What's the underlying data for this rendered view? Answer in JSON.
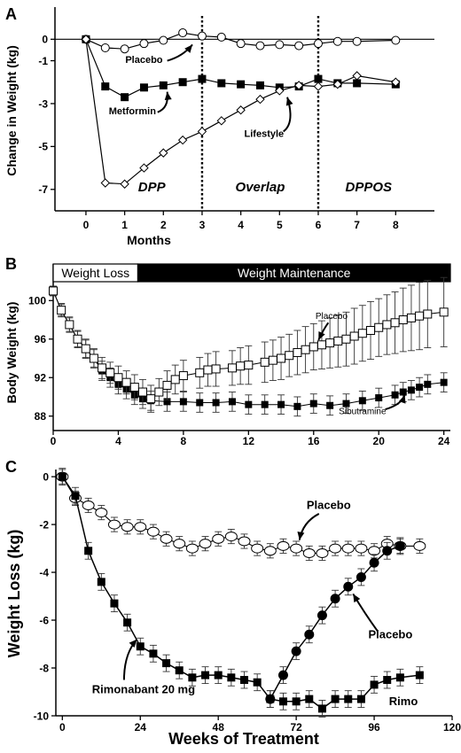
{
  "chart_data": [
    {
      "type": "line",
      "panel_letter": "A",
      "xlabel": "Months",
      "ylabel": "Change in Weight (kg)",
      "xlim": [
        -0.8,
        9
      ],
      "ylim": [
        -8,
        1.5
      ],
      "x_ticks": [
        0,
        1,
        2,
        3,
        4,
        5,
        6,
        7,
        8
      ],
      "y_ticks": [
        0,
        -1,
        -3,
        -5,
        -7
      ],
      "grid": false,
      "phases": [
        {
          "label": "DPP",
          "x": 1.7
        },
        {
          "label": "Overlap",
          "x": 4.5
        },
        {
          "label": "DPPOS",
          "x": 7.3
        }
      ],
      "dividers": [
        3,
        6
      ],
      "zero_line": true,
      "series": [
        {
          "name": "Placebo",
          "marker": "circle-open",
          "points": [
            [
              0,
              0
            ],
            [
              0.5,
              -0.4
            ],
            [
              1,
              -0.45
            ],
            [
              1.5,
              -0.2
            ],
            [
              2,
              -0.05
            ],
            [
              2.5,
              0.3
            ],
            [
              3,
              0.15
            ],
            [
              3.5,
              0.1
            ],
            [
              4,
              -0.2
            ],
            [
              4.5,
              -0.3
            ],
            [
              5,
              -0.25
            ],
            [
              5.5,
              -0.3
            ],
            [
              6,
              -0.2
            ],
            [
              6.5,
              -0.1
            ],
            [
              7,
              -0.1
            ],
            [
              8,
              -0.05
            ]
          ],
          "label_at": [
            1.5,
            -1.1
          ]
        },
        {
          "name": "Metformin",
          "marker": "square-filled",
          "points": [
            [
              0,
              0
            ],
            [
              0.5,
              -2.2
            ],
            [
              1,
              -2.7
            ],
            [
              1.5,
              -2.25
            ],
            [
              2,
              -2.15
            ],
            [
              2.5,
              -2.0
            ],
            [
              3,
              -1.85
            ],
            [
              3.5,
              -2.05
            ],
            [
              4,
              -2.1
            ],
            [
              4.5,
              -2.15
            ],
            [
              5,
              -2.25
            ],
            [
              5.5,
              -2.2
            ],
            [
              6,
              -1.85
            ],
            [
              6.5,
              -2.05
            ],
            [
              7,
              -2.05
            ],
            [
              8,
              -2.1
            ]
          ],
          "label_at": [
            1.2,
            -3.5
          ]
        },
        {
          "name": "Lifestyle",
          "marker": "diamond-open",
          "points": [
            [
              0,
              0
            ],
            [
              0.5,
              -6.7
            ],
            [
              1,
              -6.75
            ],
            [
              1.5,
              -6.0
            ],
            [
              2,
              -5.3
            ],
            [
              2.5,
              -4.7
            ],
            [
              3,
              -4.3
            ],
            [
              3.5,
              -3.8
            ],
            [
              4,
              -3.3
            ],
            [
              4.5,
              -2.8
            ],
            [
              5,
              -2.4
            ],
            [
              5.5,
              -2.15
            ],
            [
              6,
              -2.2
            ],
            [
              6.5,
              -2.1
            ],
            [
              7,
              -1.7
            ],
            [
              8,
              -2.0
            ]
          ],
          "label_at": [
            4.6,
            -4.55
          ]
        }
      ]
    },
    {
      "type": "line",
      "panel_letter": "B",
      "xlabel": "",
      "ylabel": "Body Weight (kg)",
      "xlim": [
        0,
        24.4
      ],
      "ylim": [
        86.5,
        103.8
      ],
      "x_ticks": [
        0,
        4,
        8,
        12,
        16,
        20,
        24
      ],
      "y_ticks": [
        88,
        92,
        96,
        100
      ],
      "grid": false,
      "phase_bar": [
        {
          "label": "Weight Loss",
          "from": 0,
          "to": 5.2,
          "style": "open"
        },
        {
          "label": "Weight Maintenance",
          "from": 5.2,
          "to": 24.4,
          "style": "filled"
        }
      ],
      "series": [
        {
          "name": "Placebo",
          "marker": "square-open",
          "error": [
            0.5,
            0.7,
            0.8,
            0.9,
            1.0,
            1.0,
            1.1,
            1.1,
            1.2,
            1.2,
            1.3,
            1.3,
            1.4,
            1.4,
            1.5,
            1.5,
            1.6,
            1.6,
            1.7,
            1.8,
            1.8,
            1.9,
            2.0,
            2.1,
            2.1,
            2.2,
            2.2,
            2.3,
            2.4,
            2.4,
            2.5,
            2.6,
            2.7,
            2.8,
            2.9,
            2.9,
            3.0,
            3.0,
            3.1,
            3.2,
            3.3,
            3.4,
            3.5,
            3.5,
            3.6
          ],
          "points": [
            [
              0,
              101
            ],
            [
              0.5,
              99
            ],
            [
              1,
              97.5
            ],
            [
              1.5,
              96
            ],
            [
              2,
              95
            ],
            [
              2.5,
              94
            ],
            [
              3,
              93
            ],
            [
              3.5,
              92.5
            ],
            [
              4,
              92
            ],
            [
              4.5,
              91.5
            ],
            [
              5,
              91
            ],
            [
              5.5,
              90.5
            ],
            [
              6,
              89.8
            ],
            [
              6.5,
              90.5
            ],
            [
              7,
              91.2
            ],
            [
              7.5,
              91.8
            ],
            [
              8,
              92.2
            ],
            [
              9,
              92.5
            ],
            [
              9.5,
              92.8
            ],
            [
              10,
              92.9
            ],
            [
              11,
              93
            ],
            [
              11.5,
              93.2
            ],
            [
              12,
              93.3
            ],
            [
              13,
              93.6
            ],
            [
              13.5,
              93.8
            ],
            [
              14,
              94
            ],
            [
              14.5,
              94.3
            ],
            [
              15,
              94.6
            ],
            [
              15.5,
              94.9
            ],
            [
              16,
              95.2
            ],
            [
              16.5,
              95.4
            ],
            [
              17,
              95.6
            ],
            [
              17.5,
              95.8
            ],
            [
              18,
              96
            ],
            [
              18.5,
              96.3
            ],
            [
              19,
              96.6
            ],
            [
              19.5,
              96.9
            ],
            [
              20,
              97.2
            ],
            [
              20.5,
              97.5
            ],
            [
              21,
              97.7
            ],
            [
              21.5,
              98
            ],
            [
              22,
              98.2
            ],
            [
              22.5,
              98.4
            ],
            [
              23,
              98.6
            ],
            [
              24,
              98.8
            ]
          ],
          "label_at": [
            17.1,
            98.1
          ]
        },
        {
          "name": "Sibutramine",
          "marker": "square-filled",
          "error": [
            0.5,
            0.6,
            0.7,
            0.8,
            0.9,
            0.9,
            1.0,
            1.0,
            1.0,
            1.0,
            1.0,
            1.0,
            1.0,
            1.0,
            1.0,
            1.0,
            1.0,
            1.0,
            1.0,
            1.0,
            1.0,
            1.0,
            1.0,
            1.0,
            1.0,
            1.0,
            1.0,
            1.0,
            1.0,
            1.0,
            1.0,
            1.0,
            1.0
          ],
          "points": [
            [
              0,
              101
            ],
            [
              0.5,
              99
            ],
            [
              1,
              97.5
            ],
            [
              1.5,
              96
            ],
            [
              2,
              95
            ],
            [
              2.5,
              94
            ],
            [
              3,
              92.7
            ],
            [
              3.5,
              92
            ],
            [
              4,
              91.3
            ],
            [
              4.5,
              90.8
            ],
            [
              5,
              90.2
            ],
            [
              5.5,
              89.8
            ],
            [
              6,
              89.6
            ],
            [
              7,
              89.5
            ],
            [
              8,
              89.5
            ],
            [
              9,
              89.4
            ],
            [
              10,
              89.4
            ],
            [
              11,
              89.5
            ],
            [
              12,
              89.2
            ],
            [
              13,
              89.2
            ],
            [
              14,
              89.2
            ],
            [
              15,
              89
            ],
            [
              16,
              89.3
            ],
            [
              17,
              89.1
            ],
            [
              18,
              89.3
            ],
            [
              19,
              89.6
            ],
            [
              20,
              89.9
            ],
            [
              21,
              90.2
            ],
            [
              21.5,
              90.5
            ],
            [
              22,
              90.7
            ],
            [
              22.5,
              91
            ],
            [
              23,
              91.3
            ],
            [
              24,
              91.5
            ]
          ],
          "label_at": [
            19.0,
            88.2
          ]
        }
      ]
    },
    {
      "type": "line",
      "panel_letter": "C",
      "xlabel": "Weeks of Treatment",
      "ylabel": "Weight Loss (kg)",
      "xlim": [
        -2,
        120
      ],
      "ylim": [
        -10,
        0.3
      ],
      "x_ticks": [
        0,
        24,
        48,
        72,
        96,
        120
      ],
      "y_ticks": [
        0,
        -2,
        -4,
        -6,
        -8,
        -10
      ],
      "grid": false,
      "series": [
        {
          "name": "Placebo",
          "marker": "ellipse-open",
          "error": 0.3,
          "points": [
            [
              0,
              0
            ],
            [
              4,
              -0.9
            ],
            [
              8,
              -1.2
            ],
            [
              12,
              -1.5
            ],
            [
              16,
              -2.0
            ],
            [
              20,
              -2.1
            ],
            [
              24,
              -2.1
            ],
            [
              28,
              -2.3
            ],
            [
              32,
              -2.6
            ],
            [
              36,
              -2.8
            ],
            [
              40,
              -3.0
            ],
            [
              44,
              -2.8
            ],
            [
              48,
              -2.6
            ],
            [
              52,
              -2.5
            ],
            [
              56,
              -2.7
            ],
            [
              60,
              -3.0
            ],
            [
              64,
              -3.1
            ],
            [
              68,
              -2.9
            ],
            [
              72,
              -3.0
            ],
            [
              76,
              -3.2
            ],
            [
              80,
              -3.2
            ],
            [
              84,
              -3.0
            ],
            [
              88,
              -3.0
            ],
            [
              92,
              -3.0
            ],
            [
              96,
              -3.1
            ],
            [
              100,
              -2.8
            ],
            [
              104,
              -2.9
            ],
            [
              110,
              -2.9
            ]
          ],
          "label_at": [
            82,
            -1.35
          ]
        },
        {
          "name": "Rimonabant 20 mg",
          "marker": "square-filled",
          "error": 0.35,
          "points": [
            [
              0,
              0
            ],
            [
              4,
              -0.8
            ],
            [
              8,
              -3.1
            ],
            [
              12,
              -4.4
            ],
            [
              16,
              -5.3
            ],
            [
              20,
              -6.1
            ],
            [
              24,
              -7.1
            ],
            [
              28,
              -7.4
            ],
            [
              32,
              -7.8
            ],
            [
              36,
              -8.1
            ],
            [
              40,
              -8.4
            ],
            [
              44,
              -8.3
            ],
            [
              48,
              -8.3
            ],
            [
              52,
              -8.4
            ],
            [
              56,
              -8.5
            ],
            [
              60,
              -8.6
            ],
            [
              64,
              -9.3
            ],
            [
              68,
              -9.4
            ],
            [
              72,
              -9.4
            ],
            [
              76,
              -9.3
            ],
            [
              80,
              -9.7
            ],
            [
              84,
              -9.3
            ],
            [
              88,
              -9.3
            ],
            [
              92,
              -9.3
            ],
            [
              96,
              -8.7
            ],
            [
              100,
              -8.5
            ],
            [
              104,
              -8.4
            ],
            [
              110,
              -8.3
            ]
          ],
          "label_at": [
            25,
            -9.05
          ]
        },
        {
          "name": "Placebo",
          "marker": "circle-filled",
          "error": 0.35,
          "points": [
            [
              64,
              -9.3
            ],
            [
              68,
              -8.3
            ],
            [
              72,
              -7.3
            ],
            [
              76,
              -6.6
            ],
            [
              80,
              -5.8
            ],
            [
              84,
              -5.1
            ],
            [
              88,
              -4.6
            ],
            [
              92,
              -4.2
            ],
            [
              96,
              -3.6
            ],
            [
              100,
              -3.1
            ],
            [
              104,
              -2.9
            ]
          ],
          "label_at": [
            101,
            -6.75
          ]
        },
        {
          "name": "Rimo",
          "marker": "none",
          "points": [],
          "label_at": [
            105,
            -9.55
          ]
        }
      ]
    }
  ]
}
